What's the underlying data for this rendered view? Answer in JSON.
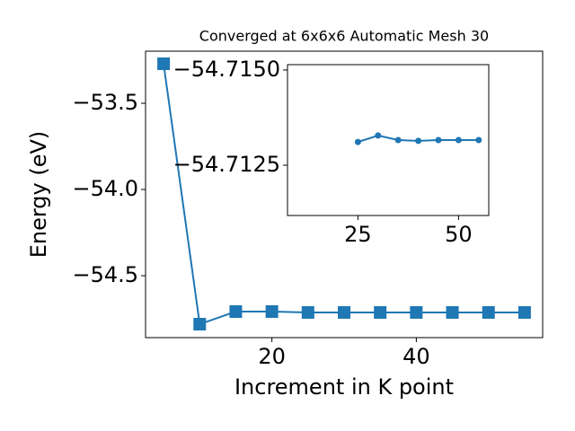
{
  "chart_data": [
    {
      "type": "line",
      "title": "Converged at 6x6x6 Automatic Mesh 30",
      "x_label": "Increment in K point",
      "y_label": "Energy (eV)",
      "x": [
        5,
        10,
        15,
        20,
        25,
        30,
        35,
        40,
        45,
        50,
        55
      ],
      "series": [
        {
          "color": "#1f77b4",
          "marker": "square",
          "values": [
            -53.271,
            -54.781,
            -54.708,
            -54.708,
            -54.713,
            -54.713,
            -54.713,
            -54.713,
            -54.713,
            -54.713,
            -54.713
          ]
        }
      ],
      "xlim": [
        2.5,
        57.5
      ],
      "ylim": [
        -54.859,
        -53.198
      ],
      "xticks": [
        20,
        40
      ],
      "yticks": [
        {
          "value": -53.5,
          "label": "−53.5"
        },
        {
          "value": -54.0,
          "label": "−54.0"
        },
        {
          "value": -54.5,
          "label": "−54.5"
        }
      ]
    },
    {
      "type": "line",
      "x": [
        25,
        30,
        35,
        40,
        45,
        50,
        55
      ],
      "series": [
        {
          "color": "#1f77b4",
          "marker": "circle",
          "values": [
            -54.71311,
            -54.71328,
            -54.71316,
            -54.71314,
            -54.71316,
            -54.71316,
            -54.71316
          ]
        }
      ],
      "xlim": [
        7.5,
        57.5
      ],
      "ylim": [
        -54.71118,
        -54.71514
      ],
      "xticks": [
        25,
        50
      ],
      "yticks": [
        {
          "value": -54.715,
          "label": "−54.7150"
        },
        {
          "value": -54.7125,
          "label": "−54.7125"
        }
      ]
    }
  ]
}
